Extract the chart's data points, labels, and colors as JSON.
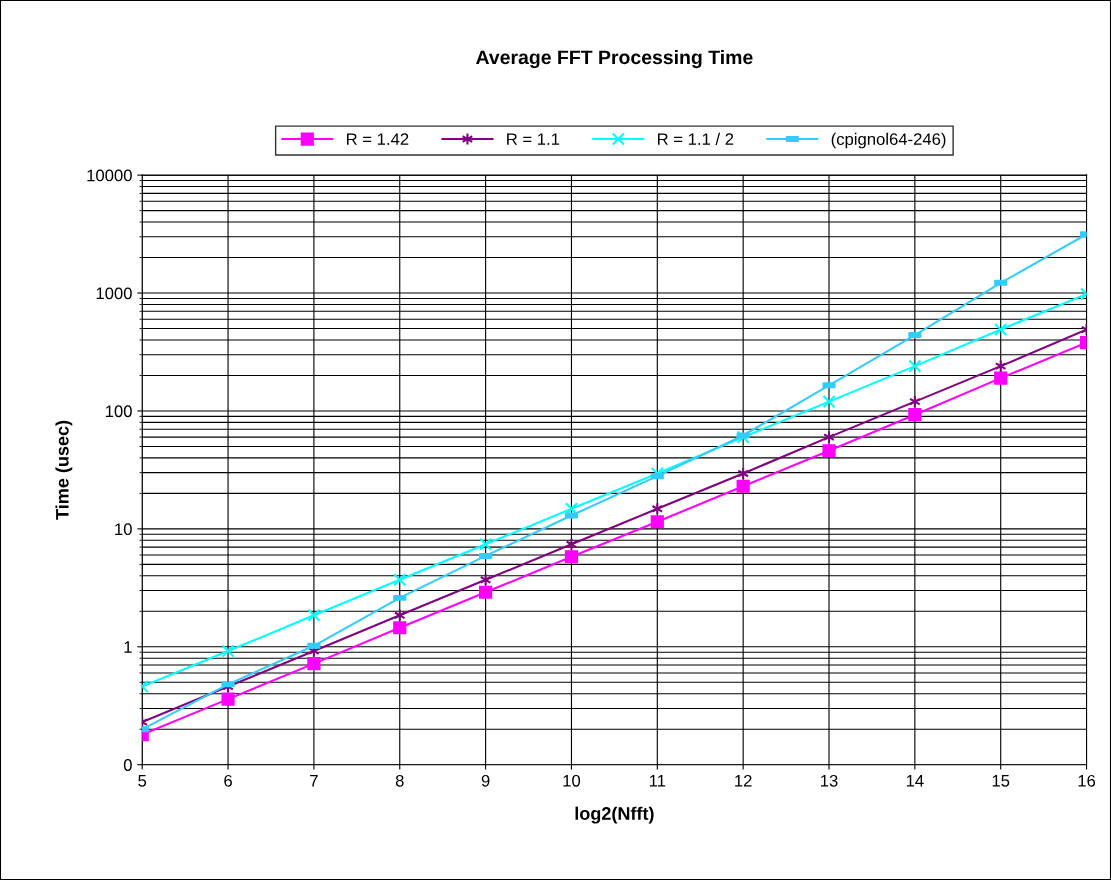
{
  "chart_data": {
    "type": "line",
    "title": "Average FFT Processing Time",
    "xlabel": "log2(Nfft)",
    "ylabel": "Time (usec)",
    "x": [
      5,
      6,
      7,
      8,
      9,
      10,
      11,
      12,
      13,
      14,
      15,
      16
    ],
    "series": [
      {
        "name": "R = 1.42",
        "color": "#ff00ff",
        "marker": "square",
        "values": [
          0.18,
          0.36,
          0.72,
          1.45,
          2.9,
          5.8,
          11.5,
          23,
          46,
          93,
          190,
          380
        ]
      },
      {
        "name": "R = 1.1",
        "color": "#800080",
        "marker": "cross",
        "values": [
          0.23,
          0.46,
          0.92,
          1.85,
          3.7,
          7.4,
          14.8,
          29.5,
          60,
          120,
          240,
          490
        ]
      },
      {
        "name": "R = 1.1 / 2",
        "color": "#00ffff",
        "marker": "cross",
        "values": [
          0.46,
          0.92,
          1.85,
          3.7,
          7.4,
          14.8,
          29.5,
          60,
          120,
          240,
          490,
          980
        ]
      },
      {
        "name": "(cpignol64-246)",
        "color": "#33ccff",
        "marker": "square",
        "values": [
          0.2,
          0.48,
          1.02,
          2.6,
          5.9,
          13,
          28,
          62,
          165,
          440,
          1220,
          3150
        ]
      }
    ],
    "log": "y",
    "xlim": [
      5,
      16
    ],
    "xticks": [
      5,
      6,
      7,
      8,
      9,
      10,
      11,
      12,
      13,
      14,
      15,
      16
    ],
    "ylim": [
      0.1,
      10000
    ],
    "yticks": [
      {
        "value": 0.1,
        "label": "0"
      },
      1,
      10,
      100,
      1000,
      10000
    ],
    "grid": true,
    "legend": "top",
    "line_style": "solid"
  }
}
